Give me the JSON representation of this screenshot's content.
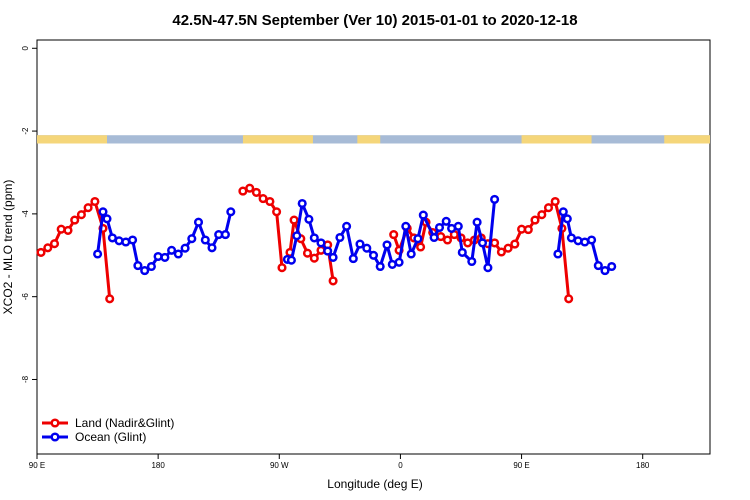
{
  "chart_data": {
    "type": "line",
    "title": "42.5N-47.5N September (Ver 10)   2015-01-01 to 2020-12-18",
    "xlabel": "Longitude (deg E)",
    "ylabel": "XCO2 - MLO trend (ppm)",
    "xlim": [
      90,
      590
    ],
    "ylim": [
      -9.8,
      0.2
    ],
    "x_ticks": [
      {
        "value": 90,
        "label": "90 E"
      },
      {
        "value": 180,
        "label": "180"
      },
      {
        "value": 270,
        "label": "90 W"
      },
      {
        "value": 360,
        "label": "0"
      },
      {
        "value": 450,
        "label": "90 E"
      },
      {
        "value": 540,
        "label": "180"
      }
    ],
    "y_ticks": [
      {
        "value": 0,
        "label": "0"
      },
      {
        "value": -2,
        "label": "-2"
      },
      {
        "value": -4,
        "label": "-4"
      },
      {
        "value": -6,
        "label": "-6"
      },
      {
        "value": -8,
        "label": "-8"
      }
    ],
    "land_ocean_band": {
      "y_range": [
        -2.1,
        -2.3
      ],
      "land_color": "#f5d67a",
      "ocean_color": "#a7bbd6",
      "land_segments": [
        [
          90,
          142
        ],
        [
          243,
          295
        ],
        [
          328,
          345
        ],
        [
          450,
          502
        ],
        [
          556,
          590
        ]
      ]
    },
    "legend": {
      "position": "bottom-left",
      "entries": [
        "Land (Nadir&Glint)",
        "Ocean (Glint)"
      ]
    },
    "series": [
      {
        "name": "Land (Nadir&Glint)",
        "color": "#ee0000",
        "segments": [
          [
            [
              93,
              -4.93
            ],
            [
              98,
              -4.82
            ],
            [
              103,
              -4.72
            ],
            [
              108,
              -4.37
            ],
            [
              113,
              -4.4
            ],
            [
              118,
              -4.15
            ],
            [
              123,
              -4.02
            ],
            [
              128,
              -3.85
            ],
            [
              133,
              -3.7
            ],
            [
              139,
              -4.35
            ],
            [
              144,
              -6.05
            ]
          ],
          [
            [
              243,
              -3.45
            ],
            [
              248,
              -3.38
            ],
            [
              253,
              -3.48
            ],
            [
              258,
              -3.63
            ],
            [
              263,
              -3.7
            ],
            [
              268,
              -3.95
            ],
            [
              272,
              -5.3
            ]
          ],
          [
            [
              278,
              -4.93
            ],
            [
              281,
              -4.15
            ],
            [
              286,
              -4.6
            ],
            [
              291,
              -4.95
            ],
            [
              296,
              -5.07
            ],
            [
              301,
              -4.88
            ],
            [
              306,
              -4.75
            ],
            [
              310,
              -5.62
            ]
          ],
          [
            [
              355,
              -4.5
            ],
            [
              359,
              -4.88
            ],
            [
              365,
              -4.35
            ],
            [
              370,
              -4.58
            ],
            [
              375,
              -4.8
            ],
            [
              379,
              -4.2
            ],
            [
              384,
              -4.45
            ],
            [
              390,
              -4.55
            ],
            [
              395,
              -4.63
            ],
            [
              400,
              -4.5
            ],
            [
              405,
              -4.58
            ],
            [
              410,
              -4.7
            ],
            [
              415,
              -4.63
            ],
            [
              420,
              -4.58
            ],
            [
              425,
              -4.72
            ],
            [
              430,
              -4.7
            ],
            [
              435,
              -4.92
            ],
            [
              440,
              -4.83
            ],
            [
              445,
              -4.73
            ],
            [
              450,
              -4.37
            ],
            [
              455,
              -4.38
            ],
            [
              460,
              -4.15
            ],
            [
              465,
              -4.02
            ],
            [
              470,
              -3.85
            ],
            [
              475,
              -3.7
            ],
            [
              480,
              -4.35
            ],
            [
              485,
              -6.05
            ]
          ]
        ]
      },
      {
        "name": "Ocean (Glint)",
        "color": "#0000ee",
        "segments": [
          [
            [
              135,
              -4.97
            ],
            [
              139,
              -3.95
            ],
            [
              142,
              -4.12
            ],
            [
              146,
              -4.58
            ],
            [
              151,
              -4.65
            ],
            [
              156,
              -4.68
            ],
            [
              161,
              -4.63
            ],
            [
              165,
              -5.25
            ],
            [
              170,
              -5.37
            ],
            [
              175,
              -5.27
            ],
            [
              180,
              -5.03
            ],
            [
              185,
              -5.05
            ],
            [
              190,
              -4.88
            ],
            [
              195,
              -4.97
            ],
            [
              200,
              -4.83
            ],
            [
              205,
              -4.6
            ],
            [
              210,
              -4.2
            ],
            [
              215,
              -4.63
            ],
            [
              220,
              -4.82
            ],
            [
              225,
              -4.5
            ],
            [
              230,
              -4.5
            ],
            [
              234,
              -3.95
            ]
          ],
          [
            [
              276,
              -5.1
            ],
            [
              279,
              -5.12
            ],
            [
              283,
              -4.53
            ],
            [
              287,
              -3.75
            ],
            [
              292,
              -4.13
            ],
            [
              296,
              -4.58
            ],
            [
              301,
              -4.7
            ],
            [
              306,
              -4.9
            ],
            [
              310,
              -5.05
            ],
            [
              315,
              -4.57
            ],
            [
              320,
              -4.3
            ],
            [
              325,
              -5.08
            ],
            [
              330,
              -4.73
            ],
            [
              335,
              -4.83
            ],
            [
              340,
              -5.0
            ],
            [
              345,
              -5.27
            ],
            [
              350,
              -4.75
            ],
            [
              354,
              -5.22
            ],
            [
              359,
              -5.17
            ],
            [
              364,
              -4.3
            ],
            [
              368,
              -4.97
            ],
            [
              373,
              -4.6
            ],
            [
              377,
              -4.03
            ],
            [
              385,
              -4.57
            ],
            [
              389,
              -4.33
            ],
            [
              394,
              -4.18
            ],
            [
              398,
              -4.35
            ],
            [
              403,
              -4.3
            ],
            [
              406,
              -4.93
            ],
            [
              413,
              -5.15
            ],
            [
              417,
              -4.2
            ],
            [
              421,
              -4.7
            ],
            [
              425,
              -5.3
            ],
            [
              430,
              -3.65
            ]
          ],
          [
            [
              477,
              -4.97
            ],
            [
              481,
              -3.95
            ],
            [
              484,
              -4.12
            ],
            [
              487,
              -4.58
            ],
            [
              492,
              -4.65
            ],
            [
              497,
              -4.68
            ],
            [
              502,
              -4.63
            ],
            [
              507,
              -5.25
            ],
            [
              512,
              -5.37
            ],
            [
              517,
              -5.27
            ]
          ]
        ]
      }
    ]
  }
}
